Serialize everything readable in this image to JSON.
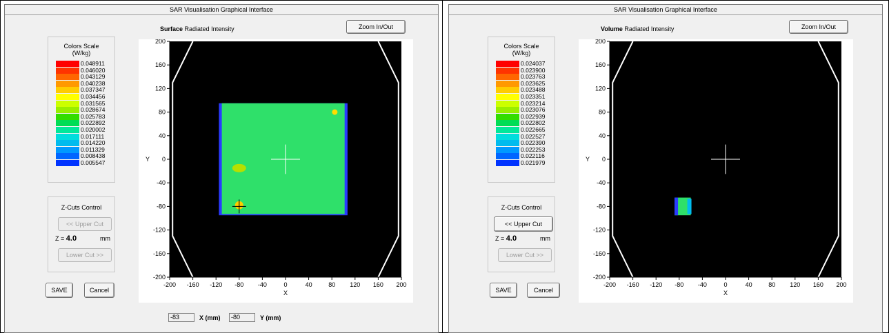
{
  "colors": {
    "scale_surface": [
      "#ff0000",
      "#ff3300",
      "#ff6600",
      "#ff9900",
      "#ffcc00",
      "#ffff00",
      "#ccff00",
      "#99ee00",
      "#33dd00",
      "#00dd55",
      "#00e89a",
      "#00dddd",
      "#00bbee",
      "#0099ff",
      "#0066ff",
      "#0033ff",
      "#0000ee"
    ],
    "plot_bg": "#000000",
    "map_fill": "#2fe06a"
  },
  "panels": [
    {
      "title": "SAR Visualisation Graphical Interface",
      "heading_bold": "Surface",
      "heading_rest": "Radiated Intensity",
      "zoom_label": "Zoom In/Out",
      "scale_title_1": "Colors Scale",
      "scale_title_2": "(W/kg)",
      "scale_values": [
        "0.048911",
        "0.046020",
        "0.043129",
        "0.040238",
        "0.037347",
        "0.034456",
        "0.031565",
        "0.028674",
        "0.025783",
        "0.022892",
        "0.020002",
        "0.017111",
        "0.014220",
        "0.011329",
        "0.008438",
        "0.005547"
      ],
      "zcuts_title": "Z-Cuts Control",
      "upper_cut_label": "<< Upper Cut",
      "upper_cut_enabled": false,
      "z_prefix": "Z =",
      "z_value": "4.0",
      "z_unit": "mm",
      "lower_cut_label": "Lower Cut >>",
      "lower_cut_enabled": false,
      "save_label": "SAVE",
      "cancel_label": "Cancel",
      "x_axis_title": "X",
      "y_axis_title": "Y",
      "x_ticks": [
        "-200",
        "-160",
        "-120",
        "-80",
        "-40",
        "0",
        "40",
        "80",
        "120",
        "160",
        "200"
      ],
      "y_ticks": [
        "200",
        "160",
        "120",
        "80",
        "40",
        "0",
        "-40",
        "-80",
        "-120",
        "-160",
        "-200"
      ],
      "x_coord_value": "-83",
      "x_coord_label": "X (mm)",
      "y_coord_value": "-80",
      "y_coord_label": "Y (mm)"
    },
    {
      "title": "SAR Visualisation Graphical Interface",
      "heading_bold": "Volume",
      "heading_rest": "Radiated Intensity",
      "zoom_label": "Zoom In/Out",
      "scale_title_1": "Colors Scale",
      "scale_title_2": "(W/kg)",
      "scale_values": [
        "0.024037",
        "0.023900",
        "0.023763",
        "0.023625",
        "0.023488",
        "0.023351",
        "0.023214",
        "0.023076",
        "0.022939",
        "0.022802",
        "0.022665",
        "0.022527",
        "0.022390",
        "0.022253",
        "0.022116",
        "0.021979"
      ],
      "zcuts_title": "Z-Cuts Control",
      "upper_cut_label": "<< Upper Cut",
      "upper_cut_enabled": true,
      "z_prefix": "Z =",
      "z_value": "4.0",
      "z_unit": "mm",
      "lower_cut_label": "Lower Cut >>",
      "lower_cut_enabled": false,
      "save_label": "SAVE",
      "cancel_label": "Cancel",
      "x_axis_title": "X",
      "y_axis_title": "Y",
      "x_ticks": [
        "-200",
        "-160",
        "-120",
        "-80",
        "-40",
        "0",
        "40",
        "80",
        "120",
        "160",
        "200"
      ],
      "y_ticks": [
        "200",
        "160",
        "120",
        "80",
        "40",
        "0",
        "-40",
        "-80",
        "-120",
        "-160",
        "-200"
      ]
    }
  ]
}
